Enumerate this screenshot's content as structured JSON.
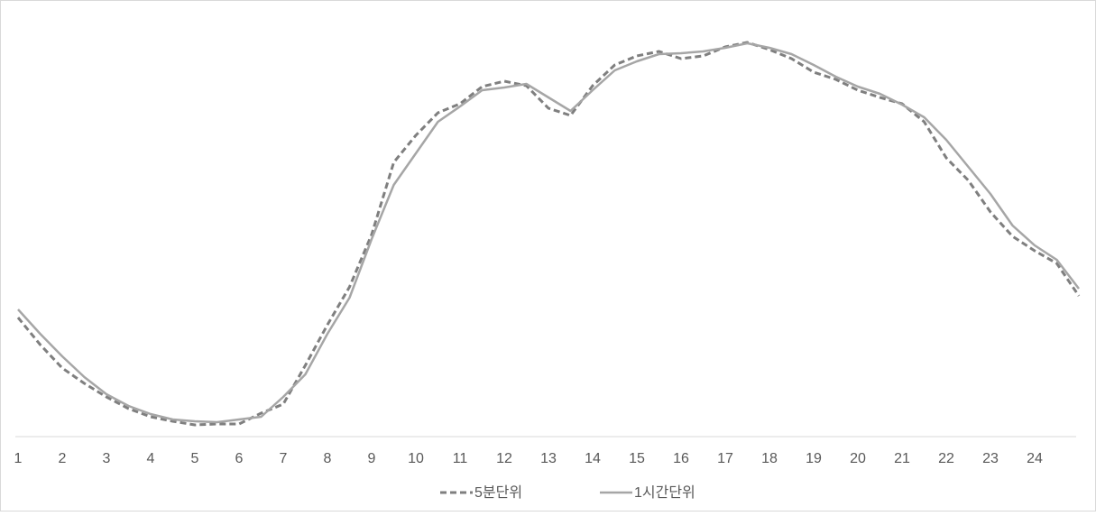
{
  "chart_data": {
    "type": "line",
    "x": [
      1,
      1.5,
      2,
      2.5,
      3,
      3.5,
      4,
      4.5,
      5,
      5.5,
      6,
      6.5,
      7,
      7.5,
      8,
      8.5,
      9,
      9.5,
      10,
      10.5,
      11,
      11.5,
      12,
      12.5,
      13,
      13.5,
      14,
      14.5,
      15,
      15.5,
      16,
      16.5,
      17,
      17.5,
      18,
      18.5,
      19,
      19.5,
      20,
      20.5,
      21,
      21.5,
      22,
      22.5,
      23,
      23.5,
      24,
      24.5,
      25
    ],
    "xlim": [
      1,
      25
    ],
    "xticks": [
      1,
      2,
      3,
      4,
      5,
      6,
      7,
      8,
      9,
      10,
      11,
      12,
      13,
      14,
      15,
      16,
      17,
      18,
      19,
      20,
      21,
      22,
      23,
      24
    ],
    "ylim": [
      0,
      440
    ],
    "legend": "bottom",
    "series": [
      {
        "name": "5분단위",
        "color": "#7f7f7f",
        "dashed": true,
        "values": [
          132,
          102,
          76,
          59,
          44,
          31,
          22,
          17,
          13,
          14,
          14,
          26,
          36,
          79,
          124,
          166,
          224,
          304,
          334,
          359,
          369,
          388,
          394,
          389,
          364,
          356,
          389,
          412,
          422,
          427,
          419,
          422,
          432,
          437,
          429,
          419,
          404,
          396,
          384,
          376,
          369,
          349,
          309,
          284,
          249,
          222,
          206,
          192,
          156
        ]
      },
      {
        "name": "1시간단위",
        "color": "#a6a6a6",
        "dashed": false,
        "values": [
          141,
          114,
          89,
          66,
          47,
          34,
          25,
          19,
          17,
          16,
          19,
          22,
          44,
          69,
          114,
          154,
          219,
          279,
          314,
          349,
          366,
          384,
          387,
          391,
          376,
          361,
          384,
          406,
          416,
          424,
          425,
          427,
          431,
          436,
          431,
          424,
          412,
          399,
          388,
          380,
          368,
          354,
          329,
          299,
          269,
          234,
          212,
          196,
          164
        ]
      }
    ]
  }
}
